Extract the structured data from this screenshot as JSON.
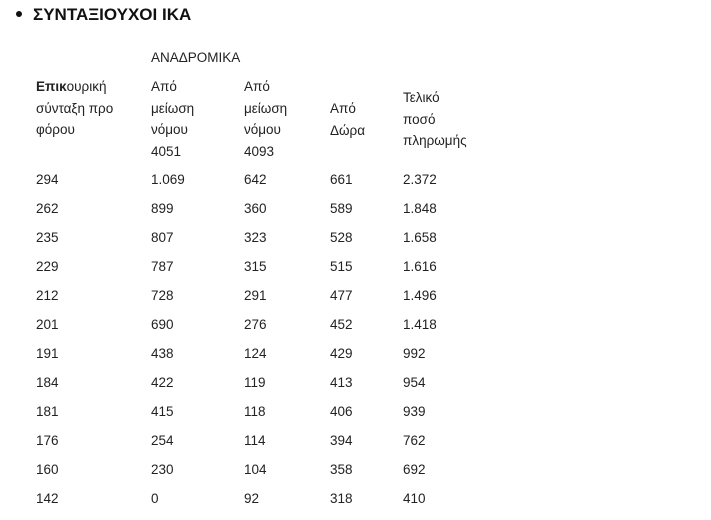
{
  "title": "ΣΥΝΤΑΞΙΟΥΧΟΙ ΙΚΑ",
  "group_header": "ΑΝΑΔΡΟΜΙΚΑ",
  "columns": [
    {
      "bold": "Επικ",
      "lines": [
        "ουρική",
        "σύνταξη προ",
        "φόρου"
      ]
    },
    {
      "lines": [
        "Από",
        "μείωση",
        "νόμου",
        "4051"
      ]
    },
    {
      "lines": [
        "Από",
        "μείωση",
        "νόμου",
        "4093"
      ]
    },
    {
      "lines": [
        "Από",
        "Δώρα"
      ]
    },
    {
      "lines": [
        "Τελικό",
        "ποσό",
        "πληρωμής"
      ]
    }
  ],
  "rows": [
    [
      "294",
      "1.069",
      "642",
      "661",
      "2.372"
    ],
    [
      "262",
      "899",
      "360",
      "589",
      "1.848"
    ],
    [
      "235",
      "807",
      "323",
      "528",
      "1.658"
    ],
    [
      "229",
      "787",
      "315",
      "515",
      "1.616"
    ],
    [
      "212",
      "728",
      "291",
      "477",
      "1.496"
    ],
    [
      "201",
      "690",
      "276",
      "452",
      "1.418"
    ],
    [
      "191",
      "438",
      "124",
      "429",
      "992"
    ],
    [
      "184",
      "422",
      "119",
      "413",
      "954"
    ],
    [
      "181",
      "415",
      "118",
      "406",
      "939"
    ],
    [
      "176",
      "254",
      "114",
      "394",
      "762"
    ],
    [
      "160",
      "230",
      "104",
      "358",
      "692"
    ],
    [
      "142",
      "0",
      "92",
      "318",
      "410"
    ]
  ]
}
